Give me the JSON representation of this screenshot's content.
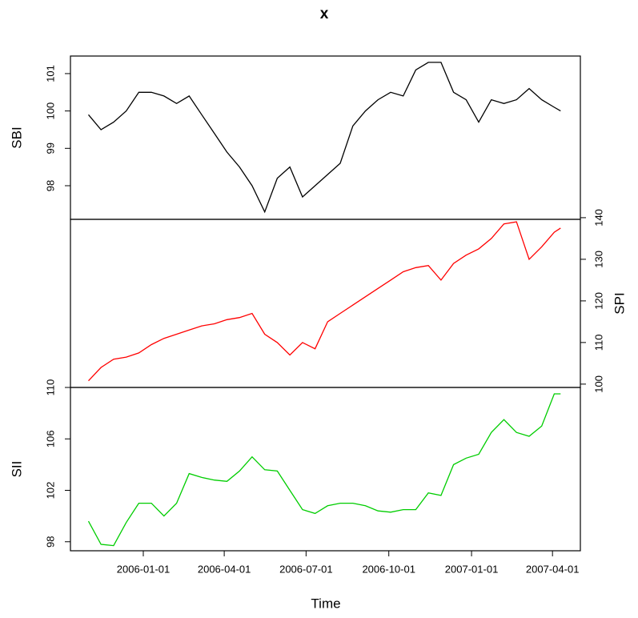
{
  "chart_data": {
    "type": "line",
    "title": "x",
    "xlabel": "Time",
    "x": [
      "2005-11-01",
      "2005-11-15",
      "2005-11-29",
      "2005-12-13",
      "2005-12-27",
      "2006-01-10",
      "2006-01-24",
      "2006-02-07",
      "2006-02-21",
      "2006-03-07",
      "2006-03-21",
      "2006-04-04",
      "2006-04-18",
      "2006-05-02",
      "2006-05-16",
      "2006-05-30",
      "2006-06-13",
      "2006-06-27",
      "2006-07-11",
      "2006-07-25",
      "2006-08-08",
      "2006-08-22",
      "2006-09-05",
      "2006-09-19",
      "2006-10-03",
      "2006-10-17",
      "2006-10-31",
      "2006-11-14",
      "2006-11-28",
      "2006-12-12",
      "2006-12-26",
      "2007-01-09",
      "2007-01-23",
      "2007-02-06",
      "2007-02-20",
      "2007-03-06",
      "2007-03-20",
      "2007-04-03",
      "2007-04-10"
    ],
    "xlim": [
      "2005-10-12",
      "2007-05-02"
    ],
    "xticks": [
      "2006-01-01",
      "2006-04-01",
      "2006-07-01",
      "2006-10-01",
      "2007-01-01",
      "2007-04-01"
    ],
    "series": [
      {
        "name": "SBI",
        "color": "#000000",
        "axis_side": "left",
        "ylim": [
          97.1,
          101.47
        ],
        "yticks": [
          98,
          99,
          100,
          101
        ],
        "values": [
          99.9,
          99.5,
          99.7,
          100.0,
          100.5,
          100.5,
          100.4,
          100.2,
          100.4,
          99.9,
          99.4,
          98.9,
          98.5,
          98.0,
          97.3,
          98.2,
          98.5,
          97.7,
          98.0,
          98.3,
          98.6,
          99.6,
          100.0,
          100.3,
          100.5,
          100.4,
          101.1,
          101.3,
          101.3,
          100.5,
          100.3,
          99.7,
          100.3,
          100.2,
          100.3,
          100.6,
          100.3,
          100.1,
          100.0
        ]
      },
      {
        "name": "SPI",
        "color": "#ff0000",
        "axis_side": "right",
        "ylim": [
          99.2,
          139.6
        ],
        "yticks": [
          100,
          110,
          120,
          130,
          140
        ],
        "values": [
          100.8,
          104,
          106,
          106.5,
          107.5,
          109.5,
          111,
          112,
          113,
          114,
          114.5,
          115.5,
          116,
          117,
          112,
          110,
          107,
          110,
          108.5,
          115,
          117,
          119,
          121,
          123,
          125,
          127,
          128,
          128.5,
          125,
          129,
          131,
          132.5,
          135,
          138.5,
          139,
          130,
          133,
          136.5,
          137.5
        ]
      },
      {
        "name": "SII",
        "color": "#00cd00",
        "axis_side": "left",
        "ylim": [
          97.3,
          110
        ],
        "yticks": [
          98,
          102,
          106,
          110
        ],
        "values": [
          99.6,
          97.8,
          97.7,
          99.5,
          101.0,
          101.0,
          100.0,
          101.0,
          103.3,
          103.0,
          102.8,
          102.7,
          103.5,
          104.6,
          103.6,
          103.5,
          102.0,
          100.5,
          100.2,
          100.8,
          101.0,
          101.0,
          100.8,
          100.4,
          100.3,
          100.5,
          100.5,
          101.8,
          101.6,
          104.0,
          104.5,
          104.8,
          106.5,
          107.5,
          106.5,
          106.2,
          107.0,
          109.5,
          109.5
        ]
      }
    ]
  }
}
